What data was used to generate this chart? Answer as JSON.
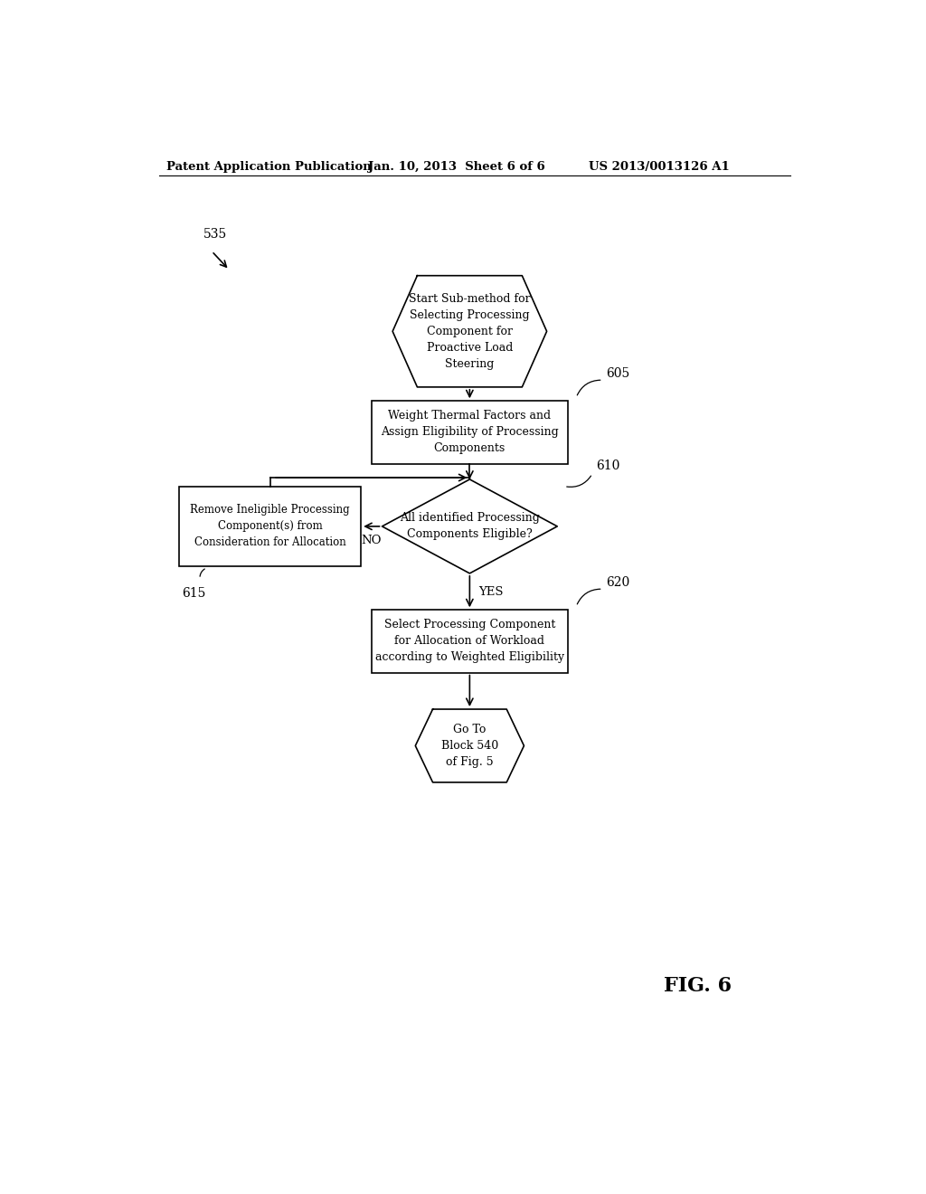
{
  "header_left": "Patent Application Publication",
  "header_mid": "Jan. 10, 2013  Sheet 6 of 6",
  "header_right": "US 2013/0013126 A1",
  "fig_label": "FIG. 6",
  "label_535": "535",
  "label_605": "605",
  "label_610": "610",
  "label_615": "615",
  "label_620": "620",
  "node_start_text": "Start Sub-method for\nSelecting Processing\nComponent for\nProactive Load\nSteering",
  "node_605_text": "Weight Thermal Factors and\nAssign Eligibility of Processing\nComponents",
  "node_610_text": "All identified Processing\nComponents Eligible?",
  "node_615_text": "Remove Ineligible Processing\nComponent(s) from\nConsideration for Allocation",
  "node_620_text": "Select Processing Component\nfor Allocation of Workload\naccording to Weighted Eligibility",
  "node_end_text": "Go To\nBlock 540\nof Fig. 5",
  "bg_color": "#ffffff"
}
